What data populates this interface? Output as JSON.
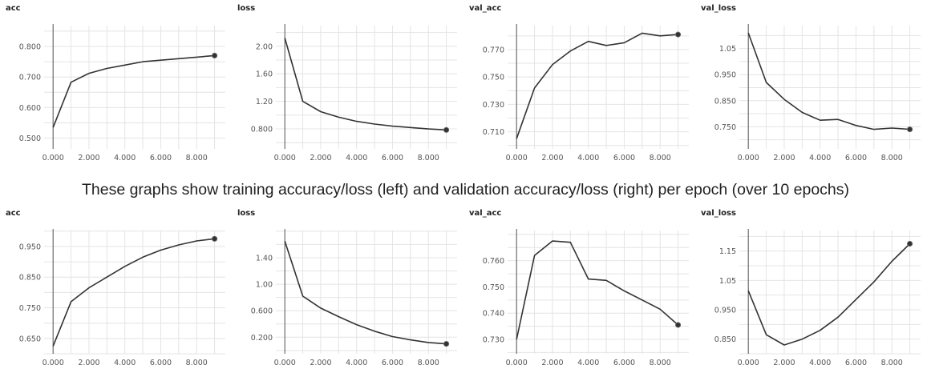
{
  "caption": "These graphs show training accuracy/loss (left) and validation accuracy/loss (right) per epoch (over 10 epochs)",
  "chart_data": [
    {
      "type": "line",
      "title": "acc",
      "x": [
        0,
        1,
        2,
        3,
        4,
        5,
        6,
        7,
        8,
        9
      ],
      "values": [
        0.535,
        0.683,
        0.712,
        0.728,
        0.739,
        0.75,
        0.755,
        0.76,
        0.765,
        0.77
      ],
      "yticks": [
        0.5,
        0.6,
        0.7,
        0.8
      ],
      "ytick_labels": [
        "0.500",
        "0.600",
        "0.700",
        "0.800"
      ],
      "ylim": [
        0.465,
        0.868
      ],
      "xticks": [
        0,
        2,
        4,
        6,
        8
      ],
      "xtick_labels": [
        "0.000",
        "2.000",
        "4.000",
        "6.000",
        "8.000"
      ],
      "xlim": [
        -0.5,
        9.6
      ]
    },
    {
      "type": "line",
      "title": "loss",
      "x": [
        0,
        1,
        2,
        3,
        4,
        5,
        6,
        7,
        8,
        9
      ],
      "values": [
        2.12,
        1.2,
        1.05,
        0.97,
        0.91,
        0.87,
        0.84,
        0.82,
        0.8,
        0.785
      ],
      "yticks": [
        0.8,
        1.2,
        1.6,
        2.0
      ],
      "ytick_labels": [
        "0.800",
        "1.20",
        "1.60",
        "2.00"
      ],
      "ylim": [
        0.51,
        2.3
      ],
      "xticks": [
        0,
        2,
        4,
        6,
        8
      ],
      "xtick_labels": [
        "0.000",
        "2.000",
        "4.000",
        "6.000",
        "8.000"
      ],
      "xlim": [
        -0.5,
        9.6
      ]
    },
    {
      "type": "line",
      "title": "val_acc",
      "x": [
        0,
        1,
        2,
        3,
        4,
        5,
        6,
        7,
        8,
        9
      ],
      "values": [
        0.705,
        0.742,
        0.759,
        0.769,
        0.776,
        0.773,
        0.775,
        0.782,
        0.78,
        0.781
      ],
      "yticks": [
        0.71,
        0.73,
        0.75,
        0.77
      ],
      "ytick_labels": [
        "0.710",
        "0.730",
        "0.750",
        "0.770"
      ],
      "ylim": [
        0.6975,
        0.7875
      ],
      "xticks": [
        0,
        2,
        4,
        6,
        8
      ],
      "xtick_labels": [
        "0.000",
        "2.000",
        "4.000",
        "6.000",
        "8.000"
      ],
      "xlim": [
        -0.5,
        9.6
      ]
    },
    {
      "type": "line",
      "title": "val_loss",
      "x": [
        0,
        1,
        2,
        3,
        4,
        5,
        6,
        7,
        8,
        9
      ],
      "values": [
        1.11,
        0.92,
        0.855,
        0.805,
        0.775,
        0.778,
        0.755,
        0.74,
        0.745,
        0.74
      ],
      "yticks": [
        0.75,
        0.85,
        0.95,
        1.05
      ],
      "ytick_labels": [
        "0.750",
        "0.850",
        "0.950",
        "1.05"
      ],
      "ylim": [
        0.665,
        1.138
      ],
      "xticks": [
        0,
        2,
        4,
        6,
        8
      ],
      "xtick_labels": [
        "0.000",
        "2.000",
        "4.000",
        "6.000",
        "8.000"
      ],
      "xlim": [
        -0.5,
        9.6
      ]
    },
    {
      "type": "line",
      "title": "acc",
      "x": [
        0,
        1,
        2,
        3,
        4,
        5,
        6,
        7,
        8,
        9
      ],
      "values": [
        0.625,
        0.77,
        0.815,
        0.85,
        0.885,
        0.915,
        0.938,
        0.955,
        0.968,
        0.975
      ],
      "yticks": [
        0.65,
        0.75,
        0.85,
        0.95
      ],
      "ytick_labels": [
        "0.650",
        "0.750",
        "0.850",
        "0.950"
      ],
      "ylim": [
        0.6,
        1.002
      ],
      "xticks": [
        0,
        2,
        4,
        6,
        8
      ],
      "xtick_labels": [
        "0.000",
        "2.000",
        "4.000",
        "6.000",
        "8.000"
      ],
      "xlim": [
        -0.5,
        9.6
      ]
    },
    {
      "type": "line",
      "title": "loss",
      "x": [
        0,
        1,
        2,
        3,
        4,
        5,
        6,
        7,
        8,
        9
      ],
      "values": [
        1.65,
        0.82,
        0.64,
        0.51,
        0.39,
        0.29,
        0.21,
        0.16,
        0.12,
        0.1
      ],
      "yticks": [
        0.2,
        0.6,
        1.0,
        1.4
      ],
      "ytick_labels": [
        "0.200",
        "0.600",
        "1.00",
        "1.40"
      ],
      "ylim": [
        -0.05,
        1.81
      ],
      "xticks": [
        0,
        2,
        4,
        6,
        8
      ],
      "xtick_labels": [
        "0.000",
        "2.000",
        "4.000",
        "6.000",
        "8.000"
      ],
      "xlim": [
        -0.5,
        9.6
      ]
    },
    {
      "type": "line",
      "title": "val_acc",
      "x": [
        0,
        1,
        2,
        3,
        4,
        5,
        6,
        7,
        8,
        9
      ],
      "values": [
        0.73,
        0.762,
        0.7675,
        0.767,
        0.753,
        0.7525,
        0.7485,
        0.745,
        0.7415,
        0.7355
      ],
      "yticks": [
        0.73,
        0.74,
        0.75,
        0.76
      ],
      "ytick_labels": [
        "0.730",
        "0.740",
        "0.750",
        "0.760"
      ],
      "ylim": [
        0.7245,
        0.7715
      ],
      "xticks": [
        0,
        2,
        4,
        6,
        8
      ],
      "xtick_labels": [
        "0.000",
        "2.000",
        "4.000",
        "6.000",
        "8.000"
      ],
      "xlim": [
        -0.5,
        9.6
      ]
    },
    {
      "type": "line",
      "title": "val_loss",
      "x": [
        0,
        1,
        2,
        3,
        4,
        5,
        6,
        7,
        8,
        9
      ],
      "values": [
        1.015,
        0.865,
        0.83,
        0.85,
        0.88,
        0.925,
        0.985,
        1.045,
        1.115,
        1.175
      ],
      "yticks": [
        0.85,
        0.95,
        1.05,
        1.15
      ],
      "ytick_labels": [
        "0.850",
        "0.950",
        "1.05",
        "1.15"
      ],
      "ylim": [
        0.8,
        1.22
      ],
      "xticks": [
        0,
        2,
        4,
        6,
        8
      ],
      "xtick_labels": [
        "0.000",
        "2.000",
        "4.000",
        "6.000",
        "8.000"
      ],
      "xlim": [
        -0.5,
        9.6
      ]
    }
  ]
}
